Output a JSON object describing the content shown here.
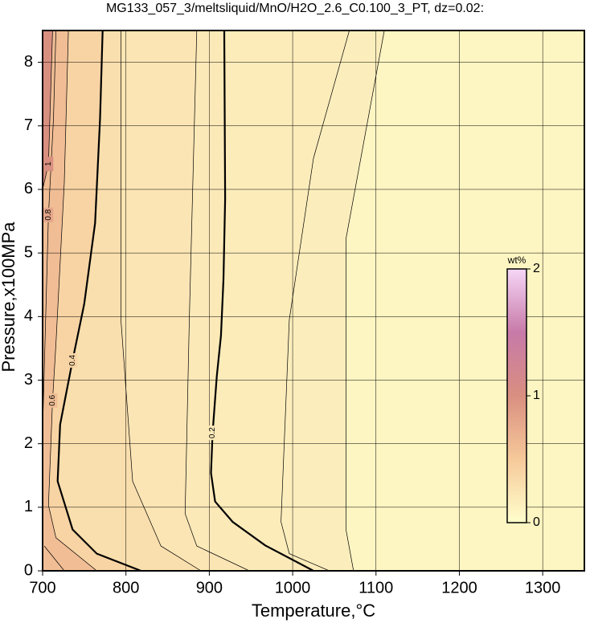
{
  "chart_data": {
    "type": "contour",
    "title": "MG133_057_3/meltsliquid/MnO/H2O_2.6_C0.100_3_PT, dz=0.02:",
    "x_label": "Temperature,°C",
    "y_label": "Pressure,x100MPa",
    "xlim": [
      700,
      1350
    ],
    "ylim": [
      0,
      8.5
    ],
    "xticks": [
      700,
      800,
      900,
      1000,
      1100,
      1200,
      1300
    ],
    "yticks": [
      0,
      1,
      2,
      3,
      4,
      5,
      6,
      7,
      8
    ],
    "grid": true,
    "contours": [
      {
        "level": 0.16,
        "bold": false,
        "labeled": false,
        "x": [
          1073,
          1064,
          1064,
          1110
        ],
        "y": [
          0,
          0.65,
          5.22,
          8.5
        ]
      },
      {
        "level": 0.18,
        "bold": false,
        "labeled": false,
        "x": [
          1044,
          996,
          986,
          996,
          1025,
          1068
        ],
        "y": [
          0,
          0.27,
          0.77,
          3.95,
          6.49,
          8.5
        ]
      },
      {
        "level": 0.2,
        "bold": true,
        "labeled": true,
        "x": [
          1025,
          967,
          928,
          907,
          902,
          904,
          909,
          914,
          917,
          919,
          918
        ],
        "y": [
          0,
          0.4,
          0.77,
          1.09,
          1.54,
          2.17,
          3.06,
          3.7,
          4.58,
          5.85,
          8.5
        ]
      },
      {
        "level": 0.24,
        "bold": false,
        "labeled": false,
        "x": [
          948,
          885,
          871,
          876,
          885
        ],
        "y": [
          0,
          0.39,
          0.9,
          3.94,
          8.5
        ]
      },
      {
        "level": 0.3,
        "bold": false,
        "labeled": false,
        "x": [
          890,
          842,
          808,
          794,
          794
        ],
        "y": [
          0,
          0.39,
          1.41,
          3.94,
          8.5
        ]
      },
      {
        "level": 0.4,
        "bold": true,
        "labeled": true,
        "x": [
          818,
          765,
          736,
          718,
          721,
          736,
          750,
          763,
          769,
          772
        ],
        "y": [
          0,
          0.27,
          0.65,
          1.41,
          2.3,
          3.31,
          4.2,
          5.47,
          7.12,
          8.5
        ]
      },
      {
        "level": 0.6,
        "bold": false,
        "labeled": true,
        "x": [
          765,
          716,
          707,
          712,
          716,
          726,
          731
        ],
        "y": [
          0,
          0.52,
          1.03,
          2.68,
          3.57,
          6.11,
          8.5
        ]
      },
      {
        "level": 0.8,
        "bold": false,
        "labeled": true,
        "x": [
          726,
          702,
          null,
          700,
          707,
          713,
          716
        ],
        "y": [
          0,
          0.39,
          null,
          2.2,
          5.6,
          7.1,
          8.5
        ]
      },
      {
        "level": 1,
        "bold": false,
        "labeled": true,
        "x": [
          700,
          707,
          712
        ],
        "y": [
          6.0,
          6.4,
          8.5
        ]
      }
    ],
    "colorbar": {
      "label": "wt%",
      "lim": [
        0,
        2
      ],
      "ticks": [
        0,
        1,
        2
      ],
      "colors": [
        "#ffffcc",
        "#f6c99a",
        "#d98f80",
        "#c77aa8",
        "#f6d6f6"
      ]
    }
  }
}
